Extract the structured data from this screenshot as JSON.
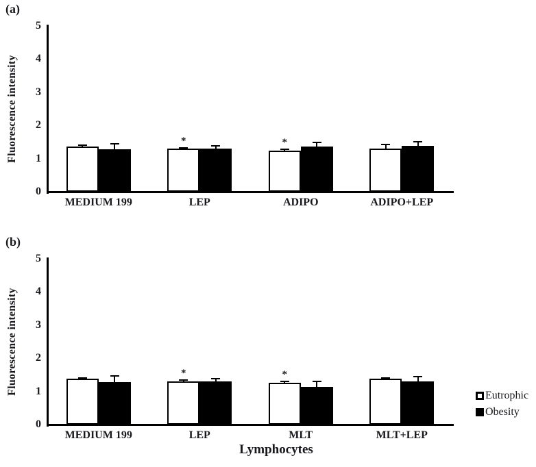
{
  "figure": {
    "background": "#ffffff",
    "text_color": "#18181d",
    "series_colors": {
      "Eutrophic": "#ffffff",
      "Obesity": "#000000"
    },
    "bar_border_color": "#000000",
    "significance_marker": "*"
  },
  "legend": {
    "items": [
      {
        "label": "Eutrophic",
        "swatch": "white-square-icon",
        "color": "#ffffff"
      },
      {
        "label": "Obesity",
        "swatch": "black-square-icon",
        "color": "#000000"
      }
    ]
  },
  "chart_data": [
    {
      "type": "bar",
      "panel_label": "(a)",
      "title": "",
      "xlabel": "",
      "ylabel": "Fluorescence intensity",
      "ylim": [
        0,
        5
      ],
      "yticks": [
        0,
        1,
        2,
        3,
        4,
        5
      ],
      "grid": false,
      "legend_position": "none",
      "categories": [
        "MEDIUM 199",
        "LEP",
        "ADIPO",
        "ADIPO+LEP"
      ],
      "series": [
        {
          "name": "Eutrophic",
          "values": [
            1.37,
            1.3,
            1.23,
            1.3
          ],
          "errors": [
            0.03,
            0.03,
            0.05,
            0.12
          ],
          "sig": [
            false,
            true,
            true,
            false
          ]
        },
        {
          "name": "Obesity",
          "values": [
            1.28,
            1.3,
            1.36,
            1.38
          ],
          "errors": [
            0.17,
            0.08,
            0.13,
            0.13
          ],
          "sig": [
            false,
            false,
            false,
            false
          ]
        }
      ]
    },
    {
      "type": "bar",
      "panel_label": "(b)",
      "title": "",
      "xlabel": "Lymphocytes",
      "ylabel": "Fluorescence intensity",
      "ylim": [
        0,
        5
      ],
      "yticks": [
        0,
        1,
        2,
        3,
        4,
        5
      ],
      "grid": false,
      "legend_position": "right",
      "categories": [
        "MEDIUM 199",
        "LEP",
        "MLT",
        "MLT+LEP"
      ],
      "series": [
        {
          "name": "Eutrophic",
          "values": [
            1.38,
            1.31,
            1.27,
            1.38
          ],
          "errors": [
            0.02,
            0.03,
            0.03,
            0.03
          ],
          "sig": [
            false,
            true,
            true,
            false
          ]
        },
        {
          "name": "Obesity",
          "values": [
            1.29,
            1.31,
            1.14,
            1.31
          ],
          "errors": [
            0.17,
            0.07,
            0.16,
            0.14
          ],
          "sig": [
            false,
            false,
            false,
            false
          ]
        }
      ]
    }
  ]
}
